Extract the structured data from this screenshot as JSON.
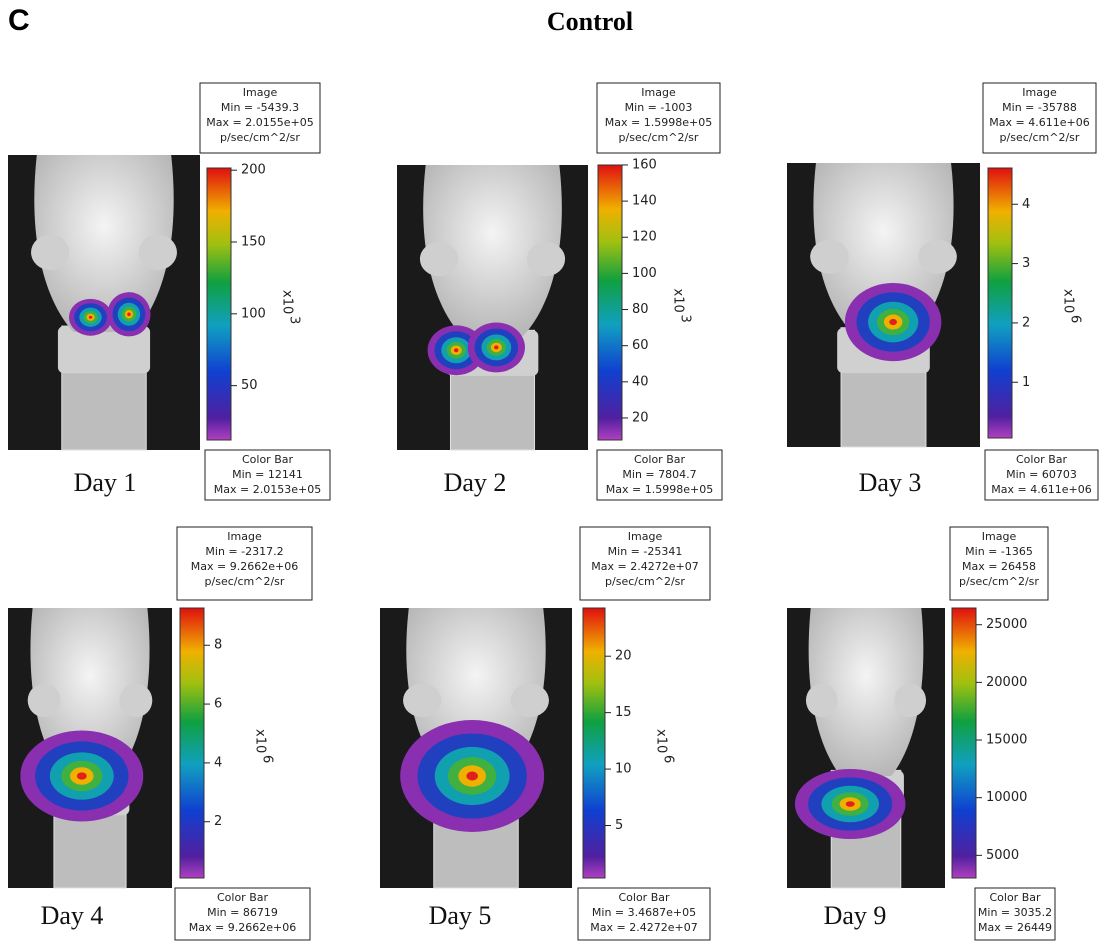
{
  "header": {
    "label": "C",
    "title": "Control"
  },
  "panels": [
    {
      "day": "Day 1",
      "image": {
        "title": "Image",
        "min": "Min = -5439.3",
        "max": "Max = 2.0155e+05",
        "unit": "p/sec/cm^2/sr"
      },
      "colorbar": {
        "title": "Color Bar",
        "min": "Min = 12141",
        "max": "Max = 2.0153e+05",
        "lim": [
          12.141,
          201.53
        ],
        "ticks": [
          50,
          100,
          150,
          200
        ],
        "exponent": "x10",
        "power": "3"
      }
    },
    {
      "day": "Day 2",
      "image": {
        "title": "Image",
        "min": "Min = -1003",
        "max": "Max = 1.5998e+05",
        "unit": "p/sec/cm^2/sr"
      },
      "colorbar": {
        "title": "Color Bar",
        "min": "Min = 7804.7",
        "max": "Max = 1.5998e+05",
        "lim": [
          7.8047,
          159.98
        ],
        "ticks": [
          20,
          40,
          60,
          80,
          100,
          120,
          140,
          160
        ],
        "exponent": "x10",
        "power": "3"
      }
    },
    {
      "day": "Day 3",
      "image": {
        "title": "Image",
        "min": "Min = -35788",
        "max": "Max = 4.611e+06",
        "unit": "p/sec/cm^2/sr"
      },
      "colorbar": {
        "title": "Color Bar",
        "min": "Min = 60703",
        "max": "Max = 4.611e+06",
        "lim": [
          0.060703,
          4.611
        ],
        "ticks": [
          1,
          2,
          3,
          4
        ],
        "exponent": "x10",
        "power": "6"
      }
    },
    {
      "day": "Day 4",
      "image": {
        "title": "Image",
        "min": "Min = -2317.2",
        "max": "Max = 9.2662e+06",
        "unit": "p/sec/cm^2/sr"
      },
      "colorbar": {
        "title": "Color Bar",
        "min": "Min = 86719",
        "max": "Max = 9.2662e+06",
        "lim": [
          0.086719,
          9.2662
        ],
        "ticks": [
          2,
          4,
          6,
          8
        ],
        "exponent": "x10",
        "power": "6"
      }
    },
    {
      "day": "Day 5",
      "image": {
        "title": "Image",
        "min": "Min = -25341",
        "max": "Max = 2.4272e+07",
        "unit": "p/sec/cm^2/sr"
      },
      "colorbar": {
        "title": "Color Bar",
        "min": "Min = 3.4687e+05",
        "max": "Max = 2.4272e+07",
        "lim": [
          0.34687,
          24.272
        ],
        "ticks": [
          5,
          10,
          15,
          20
        ],
        "exponent": "x10",
        "power": "6"
      }
    },
    {
      "day": "Day 9",
      "image": {
        "title": "Image",
        "min": "Min = -1365",
        "max": "Max = 26458",
        "unit": "p/sec/cm^2/sr"
      },
      "colorbar": {
        "title": "Color Bar",
        "min": "Min = 3035.2",
        "max": "Max = 26449",
        "lim": [
          3035.2,
          26449
        ],
        "ticks": [
          5000,
          10000,
          15000,
          20000,
          25000
        ]
      }
    }
  ]
}
